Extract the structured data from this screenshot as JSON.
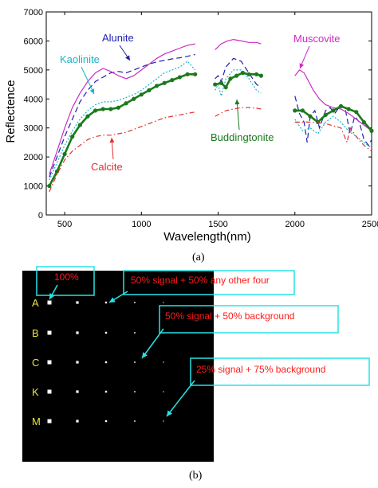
{
  "chart_data": {
    "type": "line",
    "ylabel": "Reflectence",
    "xlabel": "Wavelength(nm)",
    "xlim": [
      380,
      2500
    ],
    "ylim": [
      0,
      7000
    ],
    "xticks": [
      500,
      1000,
      1500,
      2000,
      2500
    ],
    "yticks": [
      0,
      1000,
      2000,
      3000,
      4000,
      5000,
      6000,
      7000
    ],
    "grid": false,
    "series": [
      {
        "name": "Alunite",
        "color": "#1f1fb0",
        "style": "dashed",
        "segments": [
          [
            [
              400,
              1300
            ],
            [
              450,
              2000
            ],
            [
              500,
              2700
            ],
            [
              550,
              3300
            ],
            [
              600,
              3900
            ],
            [
              650,
              4300
            ],
            [
              700,
              4600
            ],
            [
              750,
              4750
            ],
            [
              800,
              4900
            ],
            [
              850,
              4950
            ],
            [
              900,
              4900
            ],
            [
              950,
              5000
            ],
            [
              1000,
              5100
            ],
            [
              1050,
              5200
            ],
            [
              1100,
              5280
            ],
            [
              1150,
              5330
            ],
            [
              1200,
              5380
            ],
            [
              1250,
              5420
            ],
            [
              1300,
              5470
            ],
            [
              1350,
              5530
            ]
          ],
          [
            [
              1480,
              4700
            ],
            [
              1500,
              4800
            ],
            [
              1520,
              4600
            ],
            [
              1550,
              5100
            ],
            [
              1600,
              5400
            ],
            [
              1650,
              5300
            ],
            [
              1700,
              4900
            ],
            [
              1750,
              4500
            ],
            [
              1780,
              4400
            ]
          ],
          [
            [
              2000,
              4100
            ],
            [
              2030,
              3500
            ],
            [
              2060,
              3200
            ],
            [
              2080,
              2500
            ],
            [
              2100,
              3400
            ],
            [
              2130,
              3600
            ],
            [
              2160,
              3000
            ],
            [
              2200,
              3600
            ],
            [
              2230,
              3700
            ],
            [
              2260,
              3500
            ],
            [
              2300,
              3800
            ],
            [
              2330,
              3600
            ],
            [
              2360,
              2800
            ],
            [
              2390,
              3400
            ],
            [
              2420,
              3200
            ],
            [
              2450,
              2600
            ],
            [
              2480,
              2400
            ],
            [
              2500,
              2600
            ]
          ]
        ]
      },
      {
        "name": "Kaolinite",
        "color": "#19b5c9",
        "style": "dotted",
        "segments": [
          [
            [
              400,
              1200
            ],
            [
              450,
              1800
            ],
            [
              500,
              2400
            ],
            [
              550,
              2900
            ],
            [
              600,
              3300
            ],
            [
              650,
              3600
            ],
            [
              700,
              3800
            ],
            [
              750,
              3900
            ],
            [
              800,
              3900
            ],
            [
              850,
              3950
            ],
            [
              900,
              4050
            ],
            [
              950,
              4150
            ],
            [
              1000,
              4300
            ],
            [
              1050,
              4500
            ],
            [
              1100,
              4700
            ],
            [
              1150,
              4900
            ],
            [
              1200,
              5000
            ],
            [
              1250,
              5100
            ],
            [
              1300,
              5300
            ],
            [
              1350,
              5000
            ]
          ],
          [
            [
              1480,
              4300
            ],
            [
              1500,
              4500
            ],
            [
              1520,
              4100
            ],
            [
              1550,
              4700
            ],
            [
              1600,
              5000
            ],
            [
              1650,
              5000
            ],
            [
              1700,
              4700
            ],
            [
              1750,
              4300
            ],
            [
              1780,
              4200
            ]
          ],
          [
            [
              2000,
              3300
            ],
            [
              2050,
              2900
            ],
            [
              2100,
              3000
            ],
            [
              2150,
              2800
            ],
            [
              2200,
              3200
            ],
            [
              2250,
              3400
            ],
            [
              2300,
              3200
            ],
            [
              2350,
              2900
            ],
            [
              2400,
              2700
            ],
            [
              2450,
              2500
            ],
            [
              2500,
              2300
            ]
          ]
        ]
      },
      {
        "name": "Muscovite",
        "color": "#cc2bc4",
        "style": "solid",
        "segments": [
          [
            [
              400,
              1400
            ],
            [
              450,
              2200
            ],
            [
              500,
              3000
            ],
            [
              550,
              3700
            ],
            [
              600,
              4200
            ],
            [
              650,
              4600
            ],
            [
              700,
              4900
            ],
            [
              750,
              5050
            ],
            [
              800,
              4950
            ],
            [
              850,
              4800
            ],
            [
              900,
              4700
            ],
            [
              950,
              4800
            ],
            [
              1000,
              5000
            ],
            [
              1050,
              5200
            ],
            [
              1100,
              5400
            ],
            [
              1150,
              5550
            ],
            [
              1200,
              5650
            ],
            [
              1250,
              5750
            ],
            [
              1300,
              5850
            ],
            [
              1350,
              5900
            ]
          ],
          [
            [
              1480,
              5700
            ],
            [
              1520,
              5900
            ],
            [
              1560,
              6000
            ],
            [
              1600,
              6050
            ],
            [
              1650,
              6000
            ],
            [
              1700,
              5950
            ],
            [
              1750,
              5950
            ],
            [
              1780,
              5900
            ]
          ],
          [
            [
              2000,
              4800
            ],
            [
              2030,
              5000
            ],
            [
              2060,
              4900
            ],
            [
              2090,
              4600
            ],
            [
              2120,
              4300
            ],
            [
              2160,
              4000
            ],
            [
              2200,
              3800
            ],
            [
              2250,
              3700
            ],
            [
              2300,
              3650
            ],
            [
              2350,
              3500
            ],
            [
              2400,
              3300
            ],
            [
              2450,
              3100
            ],
            [
              2500,
              2900
            ]
          ]
        ]
      },
      {
        "name": "Buddingtonite",
        "color": "#1a7a1a",
        "style": "thick-markers",
        "segments": [
          [
            [
              400,
              1000
            ],
            [
              450,
              1500
            ],
            [
              500,
              2100
            ],
            [
              550,
              2700
            ],
            [
              600,
              3100
            ],
            [
              650,
              3400
            ],
            [
              700,
              3600
            ],
            [
              750,
              3650
            ],
            [
              800,
              3650
            ],
            [
              850,
              3700
            ],
            [
              900,
              3850
            ],
            [
              950,
              4000
            ],
            [
              1000,
              4150
            ],
            [
              1050,
              4300
            ],
            [
              1100,
              4450
            ],
            [
              1150,
              4550
            ],
            [
              1200,
              4650
            ],
            [
              1250,
              4750
            ],
            [
              1300,
              4850
            ],
            [
              1350,
              4850
            ]
          ],
          [
            [
              1480,
              4500
            ],
            [
              1520,
              4550
            ],
            [
              1550,
              4400
            ],
            [
              1580,
              4700
            ],
            [
              1620,
              4800
            ],
            [
              1660,
              4900
            ],
            [
              1700,
              4850
            ],
            [
              1750,
              4850
            ],
            [
              1780,
              4800
            ]
          ],
          [
            [
              2000,
              3600
            ],
            [
              2050,
              3600
            ],
            [
              2100,
              3400
            ],
            [
              2150,
              3200
            ],
            [
              2200,
              3450
            ],
            [
              2250,
              3600
            ],
            [
              2300,
              3750
            ],
            [
              2350,
              3650
            ],
            [
              2400,
              3550
            ],
            [
              2450,
              3200
            ],
            [
              2500,
              2900
            ]
          ]
        ]
      },
      {
        "name": "Calcite",
        "color": "#e03030",
        "style": "dashdot",
        "segments": [
          [
            [
              400,
              800
            ],
            [
              450,
              1400
            ],
            [
              500,
              1900
            ],
            [
              550,
              2200
            ],
            [
              600,
              2400
            ],
            [
              650,
              2600
            ],
            [
              700,
              2700
            ],
            [
              750,
              2750
            ],
            [
              800,
              2750
            ],
            [
              850,
              2800
            ],
            [
              900,
              2850
            ],
            [
              950,
              2950
            ],
            [
              1000,
              3050
            ],
            [
              1050,
              3150
            ],
            [
              1100,
              3250
            ],
            [
              1150,
              3350
            ],
            [
              1200,
              3400
            ],
            [
              1250,
              3450
            ],
            [
              1300,
              3500
            ],
            [
              1350,
              3550
            ]
          ],
          [
            [
              1480,
              3400
            ],
            [
              1550,
              3600
            ],
            [
              1600,
              3650
            ],
            [
              1650,
              3700
            ],
            [
              1700,
              3700
            ],
            [
              1750,
              3680
            ],
            [
              1780,
              3650
            ]
          ],
          [
            [
              2000,
              3200
            ],
            [
              2100,
              3200
            ],
            [
              2200,
              3150
            ],
            [
              2300,
              3000
            ],
            [
              2340,
              2500
            ],
            [
              2360,
              3000
            ],
            [
              2400,
              2700
            ],
            [
              2450,
              2400
            ],
            [
              2500,
              2200
            ]
          ]
        ]
      }
    ],
    "annotations": [
      "Alunite",
      "Kaolinite",
      "Muscovite",
      "Buddingtonite",
      "Calcite"
    ]
  },
  "captions": {
    "a": "(a)",
    "b": "(b)"
  },
  "panel_b": {
    "row_labels": [
      "A",
      "B",
      "C",
      "K",
      "M"
    ],
    "label_color": "#e8e83a",
    "annotation_color": "#ff1a1a",
    "box_color": "#27e3e3",
    "annotations": {
      "pure": "100%",
      "mixed_other": "50% signal + 50% any other four",
      "mixed_bg50": "50% signal + 50% background",
      "mixed_bg75": "25% signal + 75% background"
    }
  }
}
